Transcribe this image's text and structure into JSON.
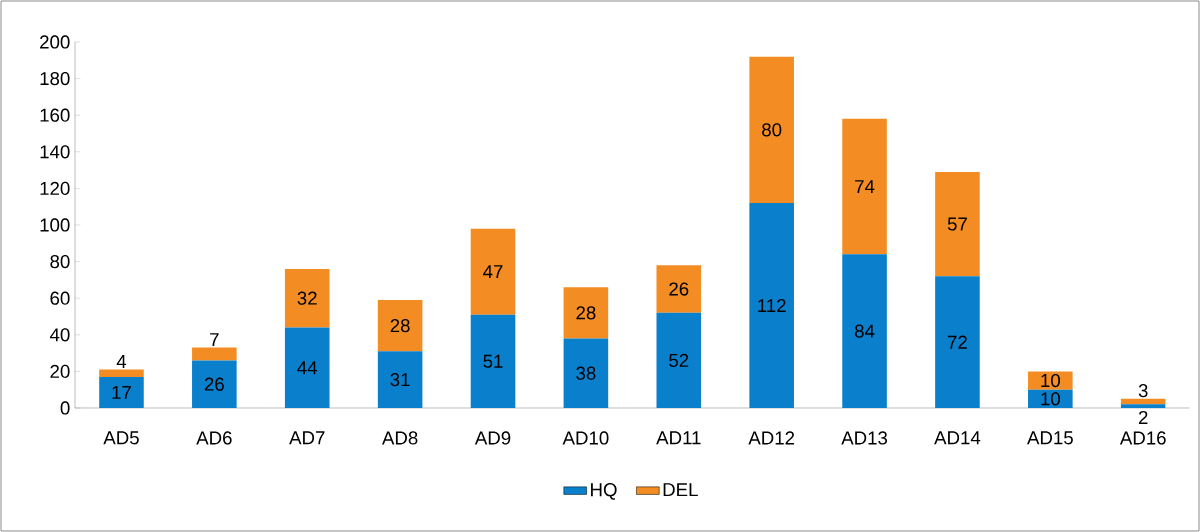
{
  "chart_data": {
    "type": "bar",
    "stacked": true,
    "categories": [
      "AD5",
      "AD6",
      "AD7",
      "AD8",
      "AD9",
      "AD10",
      "AD11",
      "AD12",
      "AD13",
      "AD14",
      "AD15",
      "AD16"
    ],
    "series": [
      {
        "name": "HQ",
        "color": "#0a7fcc",
        "values": [
          17,
          26,
          44,
          31,
          51,
          38,
          52,
          112,
          84,
          72,
          10,
          2
        ]
      },
      {
        "name": "DEL",
        "color": "#f38d23",
        "values": [
          4,
          7,
          32,
          28,
          47,
          28,
          26,
          80,
          74,
          57,
          10,
          3
        ]
      }
    ],
    "ylim": [
      0,
      200
    ],
    "yticks": [
      0,
      20,
      40,
      60,
      80,
      100,
      120,
      140,
      160,
      180,
      200
    ],
    "data_labels": true,
    "legend": "bottom",
    "grid": false
  }
}
